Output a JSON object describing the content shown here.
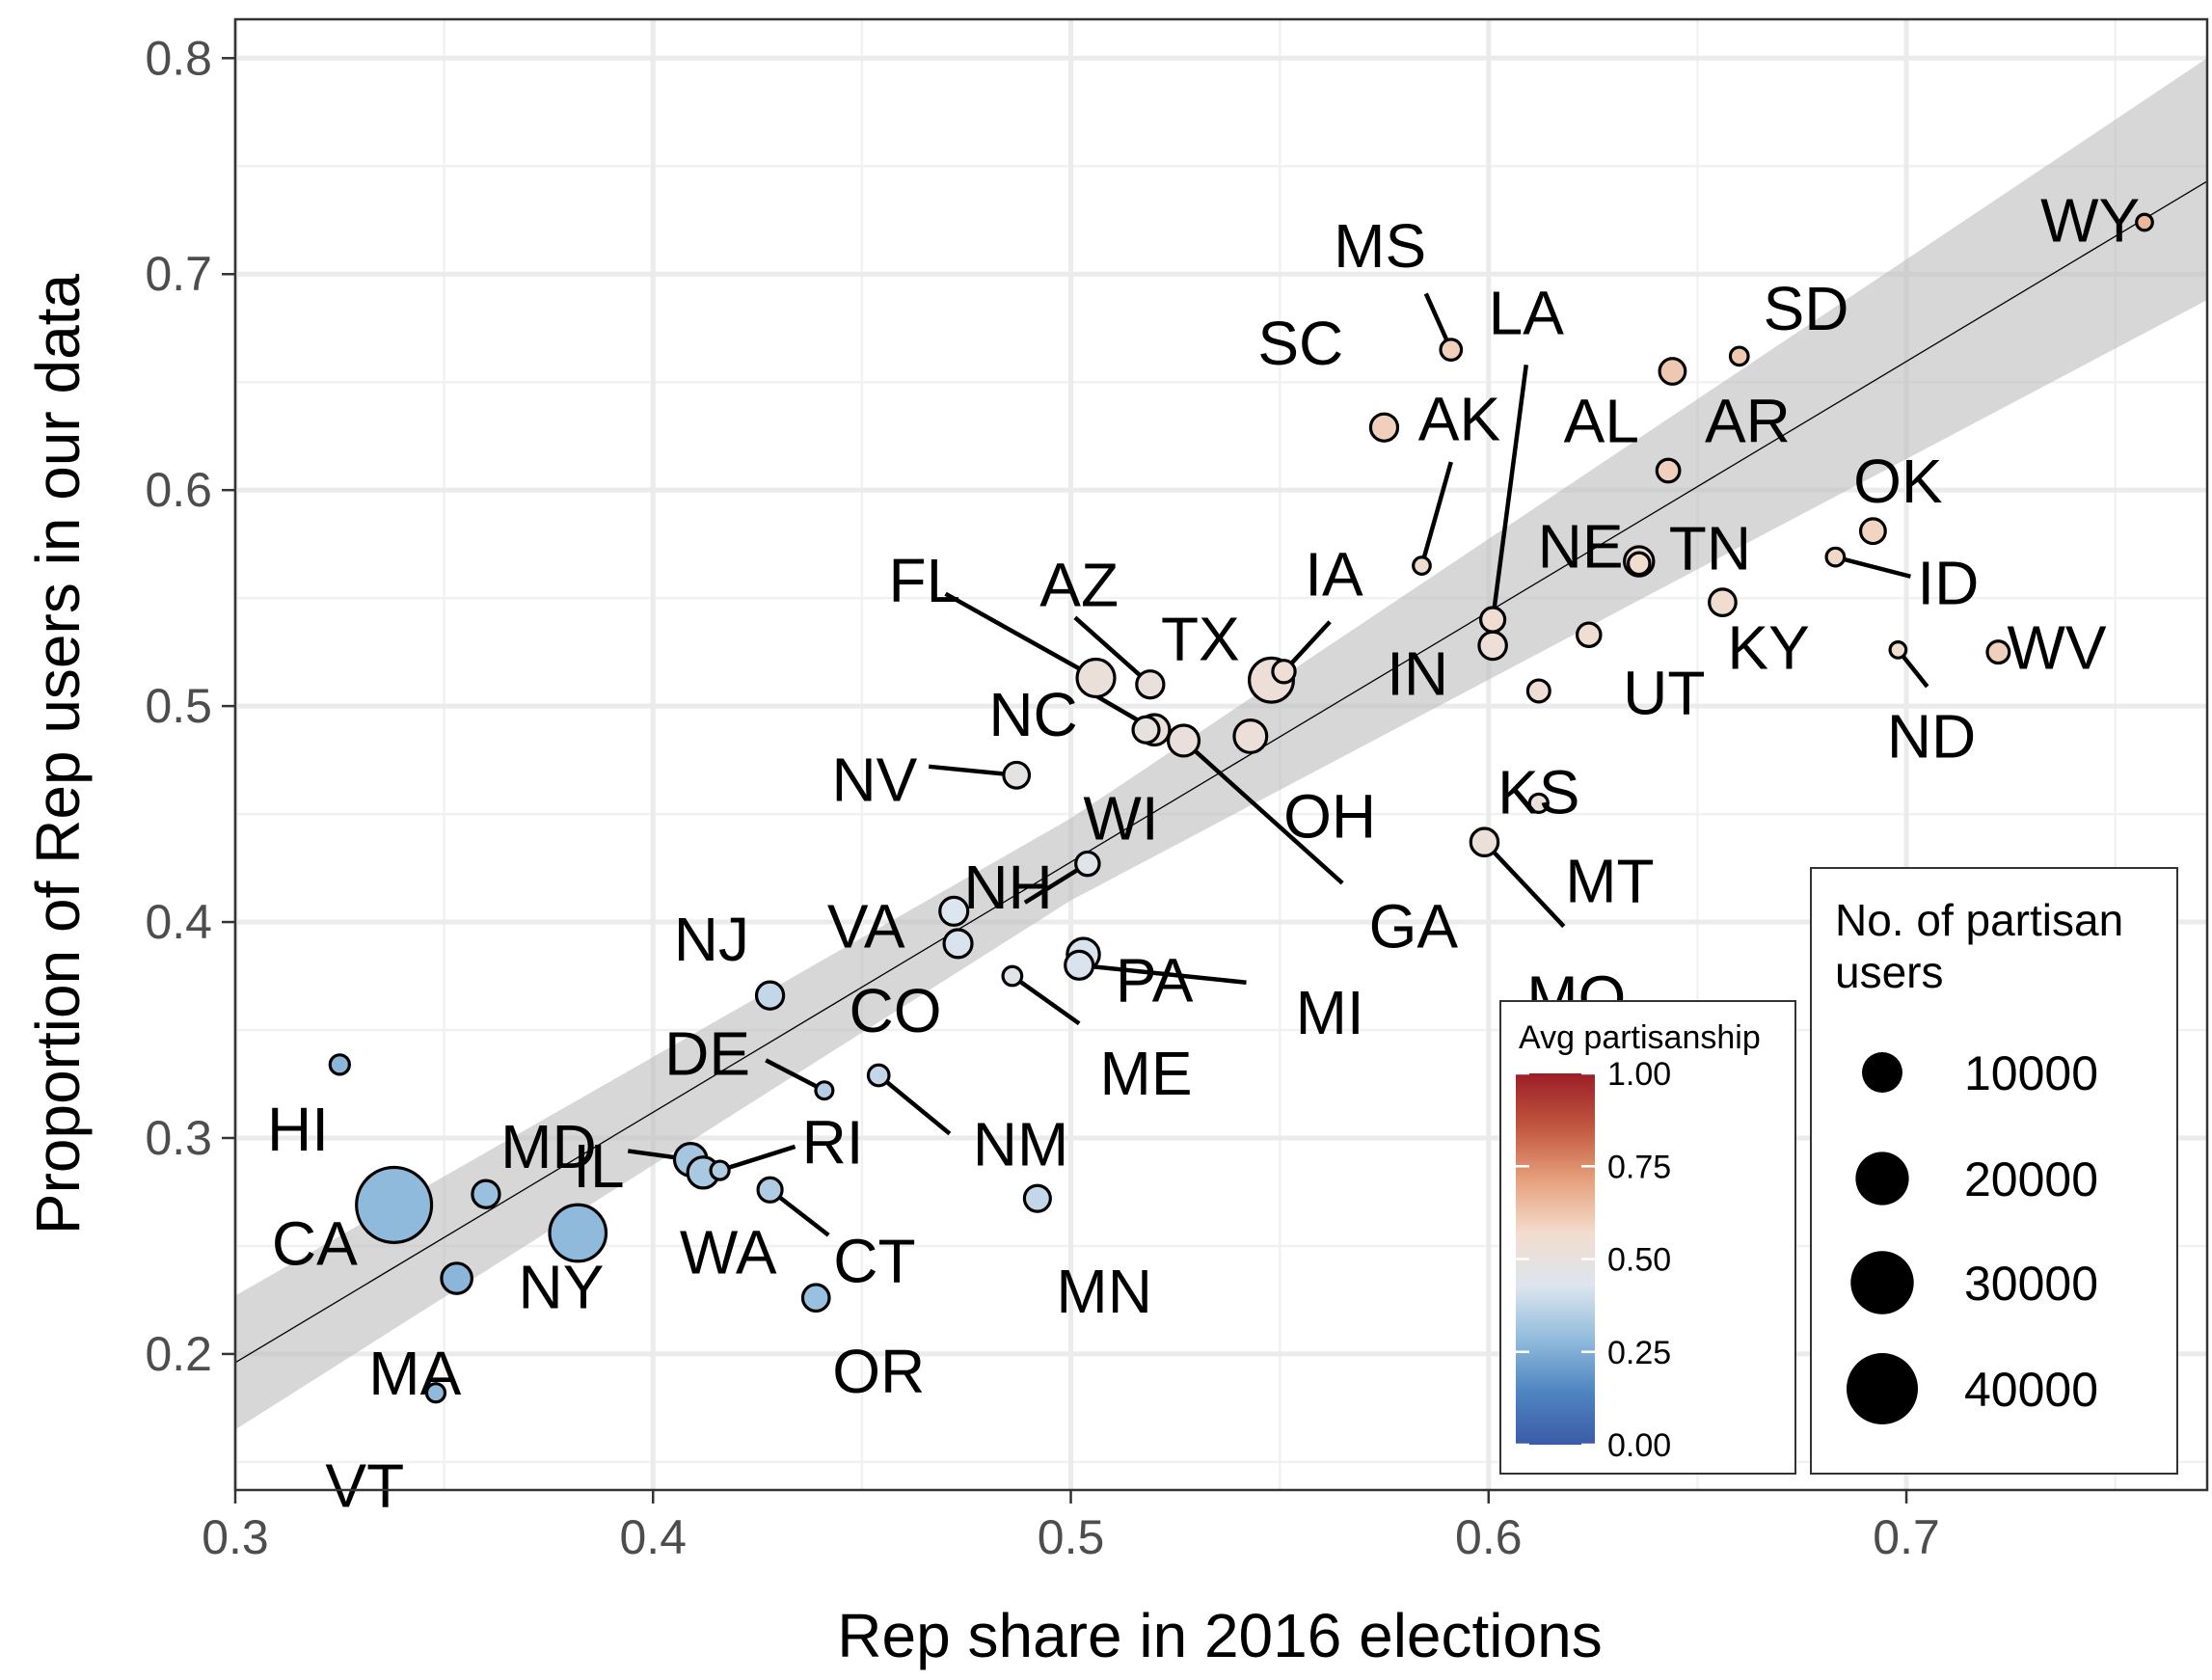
{
  "chart_data": {
    "type": "scatter",
    "xlabel": "Rep share in 2016 elections",
    "ylabel": "Proportion of Rep users in our data",
    "xlim": [
      0.3,
      0.772
    ],
    "ylim": [
      0.137,
      0.818
    ],
    "x_ticks": [
      {
        "v": 0.3,
        "label": "0.3"
      },
      {
        "v": 0.4,
        "label": "0.4"
      },
      {
        "v": 0.5,
        "label": "0.5"
      },
      {
        "v": 0.6,
        "label": "0.6"
      },
      {
        "v": 0.7,
        "label": "0.7"
      }
    ],
    "y_ticks": [
      {
        "v": 0.2,
        "label": "0.2"
      },
      {
        "v": 0.3,
        "label": "0.3"
      },
      {
        "v": 0.4,
        "label": "0.4"
      },
      {
        "v": 0.5,
        "label": "0.5"
      },
      {
        "v": 0.6,
        "label": "0.6"
      },
      {
        "v": 0.7,
        "label": "0.7"
      },
      {
        "v": 0.8,
        "label": "0.8"
      }
    ],
    "grid": true,
    "fit_line": {
      "x0": 0.3,
      "y0": 0.196,
      "x1": 0.772,
      "y1": 0.743
    },
    "confidence_band": {
      "lower": [
        [
          0.3,
          0.165
        ],
        [
          0.5,
          0.41
        ],
        [
          0.772,
          0.688
        ]
      ],
      "upper": [
        [
          0.3,
          0.227
        ],
        [
          0.5,
          0.448
        ],
        [
          0.772,
          0.8
        ]
      ]
    },
    "points": [
      {
        "state": "WY",
        "x": 0.757,
        "y": 0.724,
        "users": 420,
        "partisanship": 0.66
      },
      {
        "state": "SD",
        "x": 0.66,
        "y": 0.662,
        "users": 720,
        "partisanship": 0.62
      },
      {
        "state": "AL",
        "x": 0.644,
        "y": 0.655,
        "users": 2700,
        "partisanship": 0.62
      },
      {
        "state": "MS",
        "x": 0.591,
        "y": 0.665,
        "users": 1300,
        "partisanship": 0.6
      },
      {
        "state": "SC",
        "x": 0.575,
        "y": 0.629,
        "users": 3200,
        "partisanship": 0.6
      },
      {
        "state": "AR",
        "x": 0.643,
        "y": 0.609,
        "users": 1800,
        "partisanship": 0.6
      },
      {
        "state": "OK",
        "x": 0.692,
        "y": 0.581,
        "users": 2400,
        "partisanship": 0.59
      },
      {
        "state": "AK",
        "x": 0.584,
        "y": 0.565,
        "users": 560,
        "partisanship": 0.55
      },
      {
        "state": "NE",
        "x": 0.636,
        "y": 0.567,
        "users": 4000,
        "partisanship": 0.56
      },
      {
        "state": "TN",
        "x": 0.636,
        "y": 0.566,
        "users": 1500,
        "partisanship": 0.56
      },
      {
        "state": "ID",
        "x": 0.683,
        "y": 0.569,
        "users": 720,
        "partisanship": 0.58
      },
      {
        "state": "KY",
        "x": 0.656,
        "y": 0.548,
        "users": 3000,
        "partisanship": 0.56
      },
      {
        "state": "WV",
        "x": 0.722,
        "y": 0.525,
        "users": 1600,
        "partisanship": 0.6
      },
      {
        "state": "ND",
        "x": 0.698,
        "y": 0.526,
        "users": 420,
        "partisanship": 0.56
      },
      {
        "state": "UT",
        "x": 0.624,
        "y": 0.533,
        "users": 2000,
        "partisanship": 0.55
      },
      {
        "state": "LA",
        "x": 0.601,
        "y": 0.54,
        "users": 2200,
        "partisanship": 0.55
      },
      {
        "state": "IN",
        "x": 0.601,
        "y": 0.528,
        "users": 3300,
        "partisanship": 0.53
      },
      {
        "state": "KS",
        "x": 0.612,
        "y": 0.507,
        "users": 1600,
        "partisanship": 0.53
      },
      {
        "state": "MT",
        "x": 0.612,
        "y": 0.455,
        "users": 800,
        "partisanship": 0.52
      },
      {
        "state": "MO",
        "x": 0.599,
        "y": 0.437,
        "users": 3300,
        "partisanship": 0.52
      },
      {
        "state": "IA",
        "x": 0.551,
        "y": 0.516,
        "users": 1700,
        "partisanship": 0.54
      },
      {
        "state": "TX",
        "x": 0.548,
        "y": 0.512,
        "users": 12500,
        "partisanship": 0.53
      },
      {
        "state": "OH",
        "x": 0.543,
        "y": 0.486,
        "users": 5500,
        "partisanship": 0.52
      },
      {
        "state": "GA",
        "x": 0.527,
        "y": 0.484,
        "users": 4700,
        "partisanship": 0.51
      },
      {
        "state": "NC",
        "x": 0.52,
        "y": 0.489,
        "users": 4500,
        "partisanship": 0.51
      },
      {
        "state": "AZ",
        "x": 0.519,
        "y": 0.51,
        "users": 3200,
        "partisanship": 0.51
      },
      {
        "state": "FL",
        "x": 0.506,
        "y": 0.513,
        "users": 8200,
        "partisanship": 0.52
      },
      {
        "state": "WI",
        "x": 0.518,
        "y": 0.489,
        "users": 2800,
        "partisanship": 0.5
      },
      {
        "state": "NV",
        "x": 0.487,
        "y": 0.468,
        "users": 2700,
        "partisanship": 0.48
      },
      {
        "state": "NH",
        "x": 0.504,
        "y": 0.427,
        "users": 2000,
        "partisanship": 0.45
      },
      {
        "state": "VA",
        "x": 0.472,
        "y": 0.405,
        "users": 3500,
        "partisanship": 0.43
      },
      {
        "state": "CO",
        "x": 0.473,
        "y": 0.39,
        "users": 3500,
        "partisanship": 0.42
      },
      {
        "state": "PA",
        "x": 0.503,
        "y": 0.385,
        "users": 5300,
        "partisanship": 0.42
      },
      {
        "state": "MI",
        "x": 0.502,
        "y": 0.38,
        "users": 3500,
        "partisanship": 0.42
      },
      {
        "state": "ME",
        "x": 0.486,
        "y": 0.375,
        "users": 900,
        "partisanship": 0.45
      },
      {
        "state": "NJ",
        "x": 0.428,
        "y": 0.366,
        "users": 3200,
        "partisanship": 0.38
      },
      {
        "state": "NM",
        "x": 0.454,
        "y": 0.329,
        "users": 1300,
        "partisanship": 0.38
      },
      {
        "state": "DE",
        "x": 0.441,
        "y": 0.322,
        "users": 600,
        "partisanship": 0.35
      },
      {
        "state": "HI",
        "x": 0.325,
        "y": 0.334,
        "users": 1000,
        "partisanship": 0.27
      },
      {
        "state": "MD",
        "x": 0.36,
        "y": 0.274,
        "users": 3200,
        "partisanship": 0.3
      },
      {
        "state": "IL",
        "x": 0.409,
        "y": 0.29,
        "users": 5400,
        "partisanship": 0.32
      },
      {
        "state": "WA",
        "x": 0.412,
        "y": 0.284,
        "users": 4800,
        "partisanship": 0.33
      },
      {
        "state": "RI",
        "x": 0.416,
        "y": 0.285,
        "users": 800,
        "partisanship": 0.34
      },
      {
        "state": "CT",
        "x": 0.428,
        "y": 0.276,
        "users": 2200,
        "partisanship": 0.34
      },
      {
        "state": "MN",
        "x": 0.492,
        "y": 0.272,
        "users": 2800,
        "partisanship": 0.38
      },
      {
        "state": "CA",
        "x": 0.338,
        "y": 0.269,
        "users": 45000,
        "partisanship": 0.28
      },
      {
        "state": "NY",
        "x": 0.382,
        "y": 0.256,
        "users": 23000,
        "partisanship": 0.28
      },
      {
        "state": "MA",
        "x": 0.353,
        "y": 0.235,
        "users": 4500,
        "partisanship": 0.27
      },
      {
        "state": "OR",
        "x": 0.439,
        "y": 0.226,
        "users": 3000,
        "partisanship": 0.3
      },
      {
        "state": "VT",
        "x": 0.348,
        "y": 0.182,
        "users": 800,
        "partisanship": 0.28
      }
    ],
    "labels": [
      {
        "state": "WY",
        "lx": 0.744,
        "ly": 0.725,
        "leader": false
      },
      {
        "state": "SD",
        "lx": 0.676,
        "ly": 0.684,
        "leader": false
      },
      {
        "state": "MS",
        "lx": 0.574,
        "ly": 0.713,
        "leader": true,
        "ex": 0.585,
        "ey": 0.691
      },
      {
        "state": "LA",
        "lx": 0.609,
        "ly": 0.682,
        "leader": true,
        "ex": 0.609,
        "ey": 0.658
      },
      {
        "state": "SC",
        "lx": 0.555,
        "ly": 0.668,
        "leader": false
      },
      {
        "state": "AK",
        "lx": 0.593,
        "ly": 0.633,
        "leader": true,
        "ex": 0.591,
        "ey": 0.613
      },
      {
        "state": "AL",
        "lx": 0.627,
        "ly": 0.632,
        "leader": false
      },
      {
        "state": "AR",
        "lx": 0.662,
        "ly": 0.632,
        "leader": false
      },
      {
        "state": "OK",
        "lx": 0.698,
        "ly": 0.604,
        "leader": false
      },
      {
        "state": "NE",
        "lx": 0.622,
        "ly": 0.574,
        "leader": false
      },
      {
        "state": "TN",
        "lx": 0.653,
        "ly": 0.573,
        "leader": false
      },
      {
        "state": "IA",
        "lx": 0.563,
        "ly": 0.561,
        "leader": true,
        "ex": 0.562,
        "ey": 0.539
      },
      {
        "state": "ID",
        "lx": 0.71,
        "ly": 0.557,
        "leader": true,
        "ex": 0.701,
        "ey": 0.56
      },
      {
        "state": "KY",
        "lx": 0.667,
        "ly": 0.527,
        "leader": false
      },
      {
        "state": "WV",
        "lx": 0.736,
        "ly": 0.527,
        "leader": false
      },
      {
        "state": "IN",
        "lx": 0.583,
        "ly": 0.515,
        "leader": false
      },
      {
        "state": "UT",
        "lx": 0.642,
        "ly": 0.506,
        "leader": false
      },
      {
        "state": "ND",
        "lx": 0.706,
        "ly": 0.486,
        "leader": true,
        "ex": 0.705,
        "ey": 0.509
      },
      {
        "state": "KS",
        "lx": 0.612,
        "ly": 0.46,
        "leader": false
      },
      {
        "state": "MT",
        "lx": 0.629,
        "ly": 0.419,
        "leader": false
      },
      {
        "state": "MO",
        "lx": 0.621,
        "ly": 0.365,
        "leader": true,
        "ex": 0.618,
        "ey": 0.398
      },
      {
        "state": "FL",
        "lx": 0.465,
        "ly": 0.558,
        "leader": true,
        "ex": 0.47,
        "ey": 0.552
      },
      {
        "state": "AZ",
        "lx": 0.502,
        "ly": 0.556,
        "leader": true,
        "ex": 0.501,
        "ey": 0.541
      },
      {
        "state": "TX",
        "lx": 0.531,
        "ly": 0.531,
        "leader": false
      },
      {
        "state": "NC",
        "lx": 0.491,
        "ly": 0.496,
        "leader": true,
        "ex": 0.504,
        "ey": 0.507
      },
      {
        "state": "NV",
        "lx": 0.453,
        "ly": 0.466,
        "leader": true,
        "ex": 0.466,
        "ey": 0.472
      },
      {
        "state": "WI",
        "lx": 0.512,
        "ly": 0.448,
        "leader": false
      },
      {
        "state": "OH",
        "lx": 0.562,
        "ly": 0.449,
        "leader": false
      },
      {
        "state": "GA",
        "lx": 0.582,
        "ly": 0.398,
        "leader": true,
        "ex": 0.565,
        "ey": 0.418
      },
      {
        "state": "NH",
        "lx": 0.485,
        "ly": 0.416,
        "leader": true,
        "ex": 0.489,
        "ey": 0.409
      },
      {
        "state": "VA",
        "lx": 0.451,
        "ly": 0.398,
        "leader": false
      },
      {
        "state": "PA",
        "lx": 0.52,
        "ly": 0.373,
        "leader": false
      },
      {
        "state": "MI",
        "lx": 0.562,
        "ly": 0.358,
        "leader": true,
        "ex": 0.542,
        "ey": 0.372
      },
      {
        "state": "CO",
        "lx": 0.458,
        "ly": 0.359,
        "leader": false
      },
      {
        "state": "ME",
        "lx": 0.518,
        "ly": 0.33,
        "leader": true,
        "ex": 0.502,
        "ey": 0.353
      },
      {
        "state": "NJ",
        "lx": 0.414,
        "ly": 0.392,
        "leader": false
      },
      {
        "state": "DE",
        "lx": 0.413,
        "ly": 0.339,
        "leader": true,
        "ex": 0.427,
        "ey": 0.336
      },
      {
        "state": "NM",
        "lx": 0.488,
        "ly": 0.297,
        "leader": true,
        "ex": 0.471,
        "ey": 0.302
      },
      {
        "state": "HI",
        "lx": 0.315,
        "ly": 0.304,
        "leader": false
      },
      {
        "state": "MD",
        "lx": 0.375,
        "ly": 0.296,
        "leader": false
      },
      {
        "state": "IL",
        "lx": 0.387,
        "ly": 0.287,
        "leader": true,
        "ex": 0.394,
        "ey": 0.294
      },
      {
        "state": "RI",
        "lx": 0.443,
        "ly": 0.298,
        "leader": true,
        "ex": 0.434,
        "ey": 0.296
      },
      {
        "state": "CT",
        "lx": 0.453,
        "ly": 0.243,
        "leader": true,
        "ex": 0.442,
        "ey": 0.255
      },
      {
        "state": "WA",
        "lx": 0.418,
        "ly": 0.247,
        "leader": false
      },
      {
        "state": "CA",
        "lx": 0.319,
        "ly": 0.251,
        "leader": false
      },
      {
        "state": "NY",
        "lx": 0.378,
        "ly": 0.231,
        "leader": false
      },
      {
        "state": "MN",
        "lx": 0.508,
        "ly": 0.229,
        "leader": false
      },
      {
        "state": "MA",
        "lx": 0.343,
        "ly": 0.191,
        "leader": false
      },
      {
        "state": "OR",
        "lx": 0.454,
        "ly": 0.192,
        "leader": false
      },
      {
        "state": "VT",
        "lx": 0.331,
        "ly": 0.139,
        "leader": false
      }
    ],
    "color_legend": {
      "title": "Avg partisanship",
      "ticks": [
        {
          "v": 1.0,
          "label": "1.00"
        },
        {
          "v": 0.75,
          "label": "0.75"
        },
        {
          "v": 0.5,
          "label": "0.50"
        },
        {
          "v": 0.25,
          "label": "0.25"
        },
        {
          "v": 0.0,
          "label": "0.00"
        }
      ],
      "colors": [
        "#3b5ba8",
        "#4f85c0",
        "#92bcdd",
        "#dde5ee",
        "#f3dccd",
        "#e6a07c",
        "#c1563f",
        "#9c1e28"
      ],
      "placement": "bottom-right"
    },
    "size_legend": {
      "title_line1": "No. of partisan",
      "title_line2": "users",
      "entries": [
        {
          "value": 10000,
          "label": "10000"
        },
        {
          "value": 20000,
          "label": "20000"
        },
        {
          "value": 30000,
          "label": "30000"
        },
        {
          "value": 40000,
          "label": "40000"
        }
      ],
      "placement": "bottom-right"
    }
  }
}
